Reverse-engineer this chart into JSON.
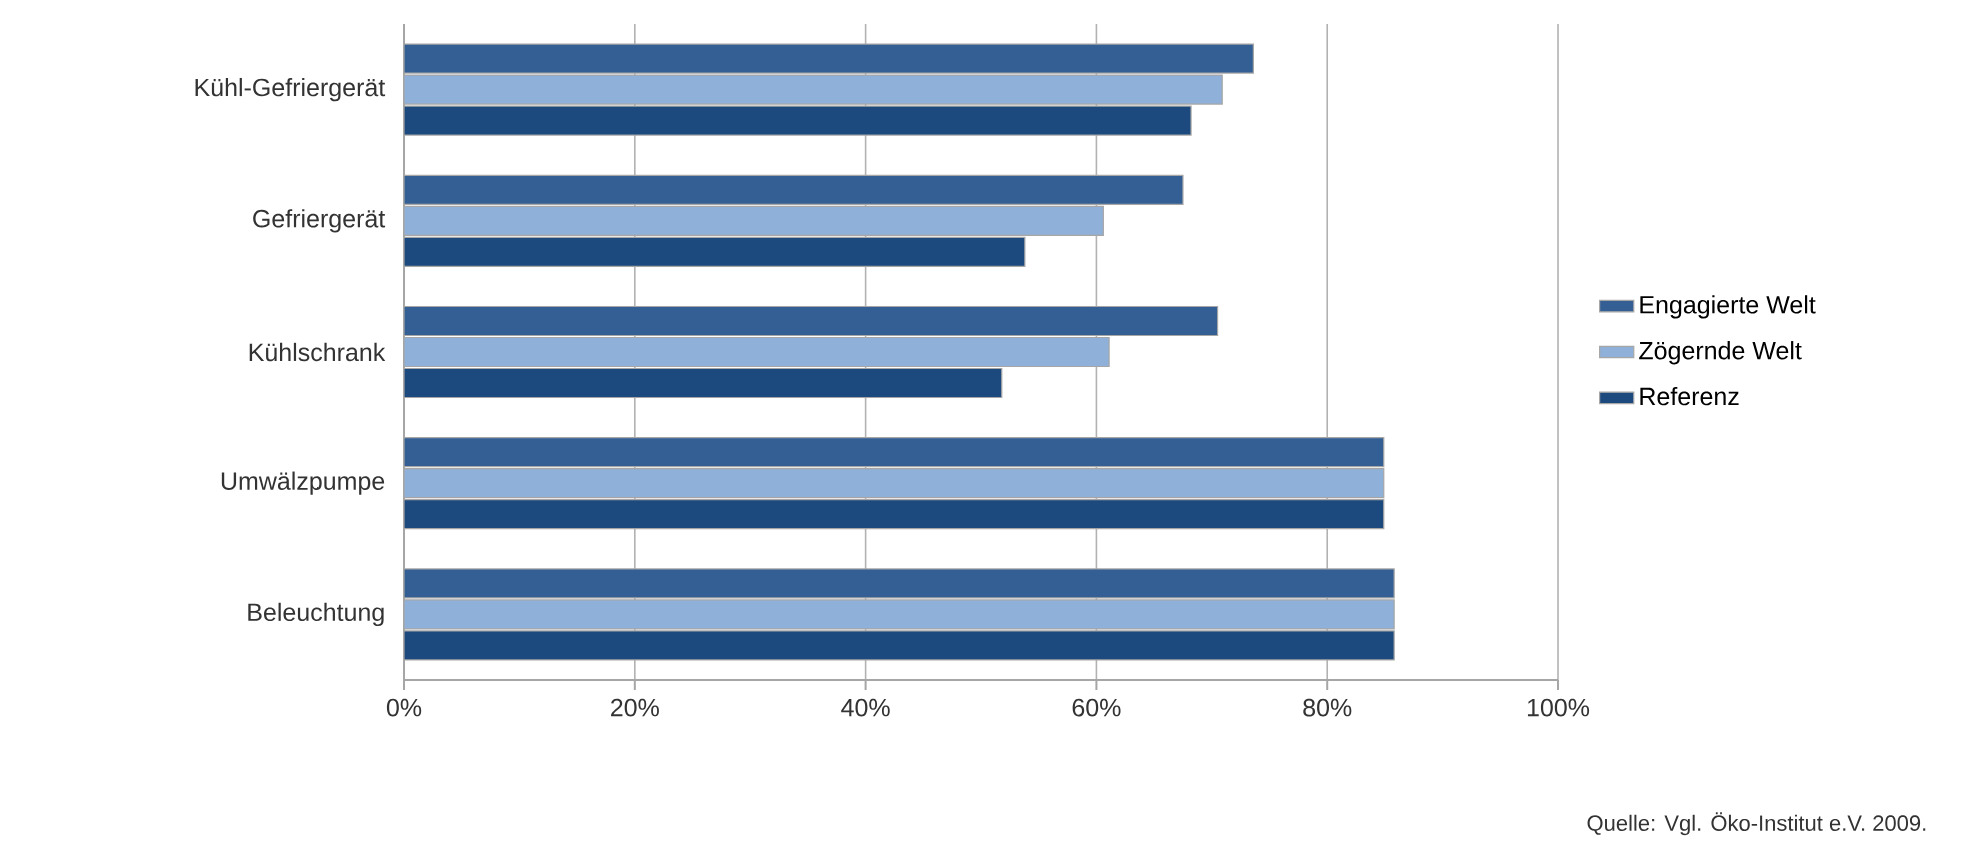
{
  "chart_data": {
    "type": "bar",
    "orientation": "horizontal",
    "categories": [
      "Kühl-Gefriergerät",
      "Gefriergerät",
      "Kühlschrank",
      "Umwälzpumpe",
      "Beleuchtung"
    ],
    "series": [
      {
        "name": "Engagierte Welt",
        "color": "#335f94",
        "values": [
          73.6,
          67.5,
          70.5,
          84.9,
          85.8
        ]
      },
      {
        "name": "Zögernde Welt",
        "color": "#8fb0d8",
        "values": [
          70.9,
          60.6,
          61.1,
          84.9,
          85.8
        ]
      },
      {
        "name": "Referenz",
        "color": "#1d4a7e",
        "values": [
          68.2,
          53.8,
          51.8,
          84.9,
          85.8
        ]
      }
    ],
    "xlim": [
      0,
      100
    ],
    "xticks": [
      {
        "value": 0,
        "label": "0%"
      },
      {
        "value": 20,
        "label": "20%"
      },
      {
        "value": 40,
        "label": "40%"
      },
      {
        "value": 60,
        "label": "60%"
      },
      {
        "value": 80,
        "label": "80%"
      },
      {
        "value": 100,
        "label": "100%"
      }
    ],
    "grid": "x",
    "legend": "right",
    "annotations": [
      "Quelle: Vgl. Öko-Institut e.V. 2009."
    ]
  }
}
